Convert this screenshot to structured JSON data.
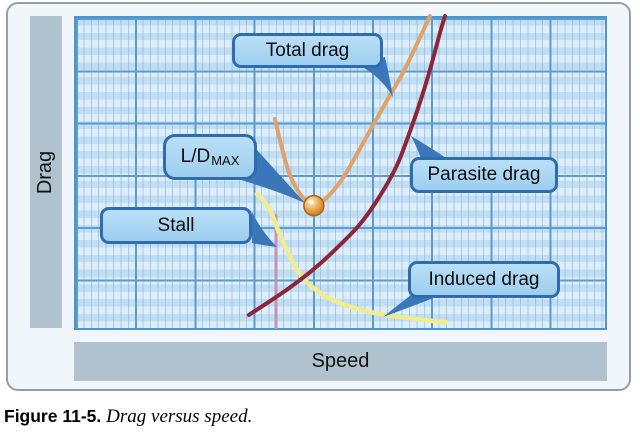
{
  "figure": {
    "y_axis_label": "Drag",
    "x_axis_label": "Speed",
    "caption_label": "Figure 11-5.",
    "caption_text": "Drag versus speed.",
    "callouts": {
      "total": "Total drag",
      "ldmax_main": "L/D",
      "ldmax_sub": "MAX",
      "stall": "Stall",
      "parasite": "Parasite drag",
      "induced": "Induced drag"
    },
    "colors": {
      "callout_fill": "#A8D4F0",
      "callout_border": "#2E6CAD",
      "axis_bar": "#AFC2CE",
      "grid_major": "#5B9BD0",
      "grid_background": "#DDEDF9"
    }
  },
  "chart_data": {
    "type": "line",
    "title": "Drag versus speed",
    "xlabel": "Speed",
    "ylabel": "Drag",
    "axes_unlabeled": true,
    "grid": true,
    "xlim": [
      0,
      100
    ],
    "ylim": [
      0,
      100
    ],
    "series": [
      {
        "name": "Induced drag",
        "color": "#F1EC8F",
        "width": 4.5,
        "points": [
          [
            34.3,
            43.3
          ],
          [
            35.6,
            41.1
          ],
          [
            37.0,
            37.3
          ],
          [
            38.5,
            30.9
          ],
          [
            40.2,
            24.5
          ],
          [
            42.0,
            18.8
          ],
          [
            44.3,
            14.3
          ],
          [
            47.1,
            10.8
          ],
          [
            50.3,
            8.3
          ],
          [
            54.0,
            6.4
          ],
          [
            58.3,
            4.8
          ],
          [
            63.0,
            3.8
          ],
          [
            67.2,
            2.9
          ],
          [
            69.8,
            2.5
          ]
        ]
      },
      {
        "name": "Parasite drag",
        "color": "#8C2638",
        "width": 4,
        "points": [
          [
            32.8,
            4.8
          ],
          [
            36.8,
            9.2
          ],
          [
            40.9,
            14.0
          ],
          [
            45.2,
            19.7
          ],
          [
            49.5,
            26.4
          ],
          [
            53.7,
            33.8
          ],
          [
            57.4,
            42.7
          ],
          [
            60.6,
            52.5
          ],
          [
            63.0,
            63.1
          ],
          [
            65.3,
            74.5
          ],
          [
            67.2,
            85.4
          ],
          [
            68.7,
            94.9
          ],
          [
            69.6,
            100.0
          ]
        ]
      },
      {
        "name": "Total drag",
        "color": "#DFA26B",
        "width": 4,
        "points": [
          [
            37.7,
            67.2
          ],
          [
            39.0,
            58.0
          ],
          [
            40.5,
            49.4
          ],
          [
            42.4,
            43.3
          ],
          [
            43.9,
            40.8
          ],
          [
            45.0,
            39.8
          ],
          [
            46.5,
            40.8
          ],
          [
            48.4,
            43.9
          ],
          [
            50.7,
            49.0
          ],
          [
            53.3,
            56.7
          ],
          [
            55.9,
            64.6
          ],
          [
            58.9,
            73.6
          ],
          [
            61.9,
            82.5
          ],
          [
            64.5,
            91.7
          ],
          [
            66.8,
            100.0
          ]
        ]
      }
    ],
    "stall_line": {
      "x": 37.9,
      "y_top": 36.9,
      "y_bottom": 0.3,
      "color": "#C791BE",
      "width": 3
    },
    "ld_max_point": {
      "x": 45.0,
      "y": 39.6,
      "radius": 10,
      "fill": "#E89A38",
      "ring": "#A96416"
    }
  }
}
